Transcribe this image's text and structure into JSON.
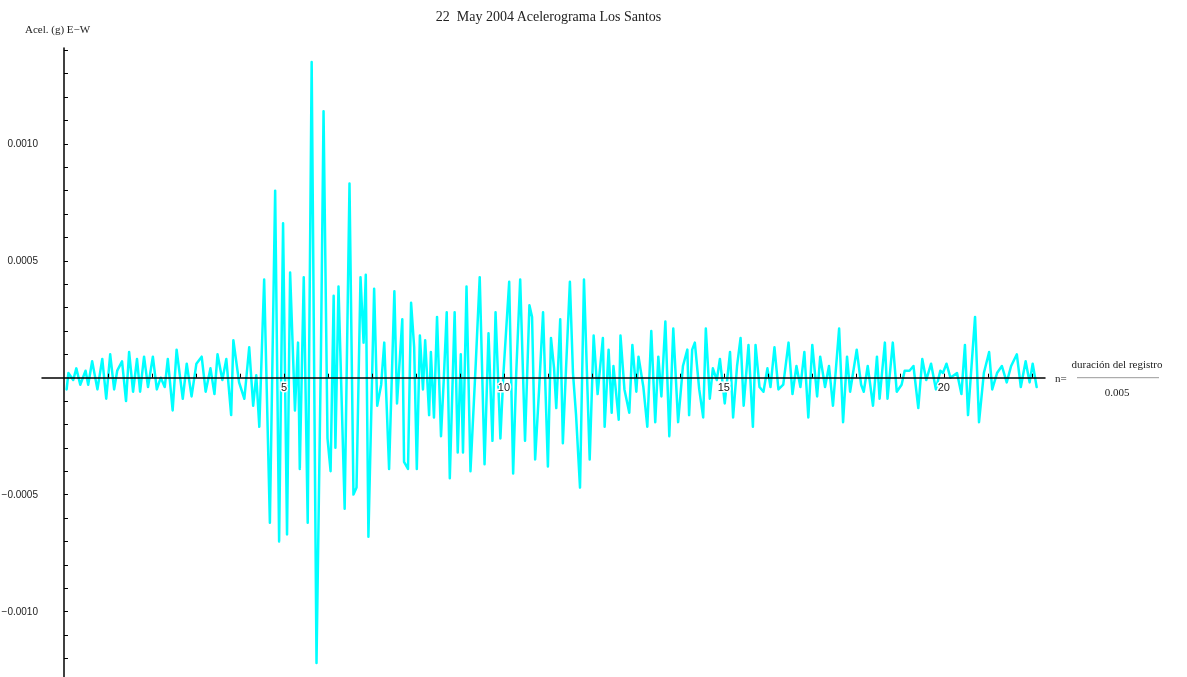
{
  "chart_data": {
    "type": "line",
    "title": "22  May 2004 Acelerograma Los Santos",
    "ylabel": "Acel. (g) E−W",
    "xlabel": "n=",
    "annotations": [
      "duración del registro",
      "0.005"
    ],
    "xlim": [
      -0.5,
      22.3
    ],
    "ylim": [
      -0.00128,
      0.00141
    ],
    "xticks": [
      {
        "value": 1,
        "label": null
      },
      {
        "value": 2,
        "label": null
      },
      {
        "value": 3,
        "label": null
      },
      {
        "value": 4,
        "label": null
      },
      5,
      {
        "value": 6,
        "label": null
      },
      {
        "value": 7,
        "label": null
      },
      {
        "value": 8,
        "label": null
      },
      {
        "value": 9,
        "label": null
      },
      10,
      {
        "value": 11,
        "label": null
      },
      {
        "value": 12,
        "label": null
      },
      {
        "value": 13,
        "label": null
      },
      {
        "value": 14,
        "label": null
      },
      15,
      {
        "value": 16,
        "label": null
      },
      {
        "value": 17,
        "label": null
      },
      {
        "value": 18,
        "label": null
      },
      {
        "value": 19,
        "label": null
      },
      20,
      {
        "value": 21,
        "label": null
      },
      {
        "value": 22,
        "label": null
      }
    ],
    "yticks": [
      {
        "value": -0.0012,
        "label": null
      },
      {
        "value": -0.0011,
        "label": null
      },
      {
        "value": -0.001,
        "label": "−0.0010"
      },
      {
        "value": -0.0009,
        "label": null
      },
      {
        "value": -0.0008,
        "label": null
      },
      {
        "value": -0.0007,
        "label": null
      },
      {
        "value": -0.0006,
        "label": null
      },
      {
        "value": -0.0005,
        "label": "−0.0005"
      },
      {
        "value": -0.0004,
        "label": null
      },
      {
        "value": -0.0003,
        "label": null
      },
      {
        "value": -0.0002,
        "label": null
      },
      {
        "value": -0.0001,
        "label": null
      },
      {
        "value": 0.0001,
        "label": null
      },
      {
        "value": 0.0002,
        "label": null
      },
      {
        "value": 0.0003,
        "label": null
      },
      {
        "value": 0.0004,
        "label": null
      },
      {
        "value": 0.0005,
        "label": "0.0005"
      },
      {
        "value": 0.0006,
        "label": null
      },
      {
        "value": 0.0007,
        "label": null
      },
      {
        "value": 0.0008,
        "label": null
      },
      {
        "value": 0.0009,
        "label": null
      },
      {
        "value": 0.001,
        "label": "0.0010"
      },
      {
        "value": 0.0011,
        "label": null
      },
      {
        "value": 0.0012,
        "label": null
      },
      {
        "value": 0.0013,
        "label": null
      },
      {
        "value": 0.0014,
        "label": null
      }
    ],
    "grid": false,
    "marker": "none",
    "line_style": "solid",
    "series": [
      {
        "color": "#00ffff",
        "x": [
          0.06,
          0.1,
          0.21,
          0.28,
          0.37,
          0.49,
          0.55,
          0.64,
          0.76,
          0.87,
          0.96,
          1.05,
          1.14,
          1.21,
          1.32,
          1.41,
          1.48,
          1.57,
          1.66,
          1.73,
          1.82,
          1.91,
          2.02,
          2.11,
          2.2,
          2.29,
          2.36,
          2.47,
          2.56,
          2.7,
          2.79,
          2.9,
          3.01,
          3.13,
          3.22,
          3.33,
          3.42,
          3.49,
          3.6,
          3.69,
          3.8,
          3.85,
          3.98,
          4.1,
          4.21,
          4.3,
          4.37,
          4.44,
          4.55,
          4.68,
          4.8,
          4.89,
          4.98,
          5.07,
          5.14,
          5.25,
          5.32,
          5.36,
          5.45,
          5.54,
          5.63,
          5.74,
          5.84,
          5.9,
          5.99,
          6.06,
          6.13,
          6.17,
          6.24,
          6.38,
          6.49,
          6.58,
          6.65,
          6.74,
          6.81,
          6.86,
          6.92,
          7.05,
          7.12,
          7.21,
          7.28,
          7.39,
          7.51,
          7.57,
          7.69,
          7.73,
          7.82,
          7.89,
          7.96,
          8.02,
          8.09,
          8.16,
          8.21,
          8.3,
          8.34,
          8.41,
          8.48,
          8.57,
          8.63,
          8.7,
          8.77,
          8.88,
          8.95,
          9.02,
          9.07,
          9.15,
          9.24,
          9.36,
          9.45,
          9.56,
          9.65,
          9.74,
          9.81,
          9.92,
          9.99,
          10.12,
          10.21,
          10.28,
          10.37,
          10.48,
          10.58,
          10.64,
          10.71,
          10.8,
          10.89,
          11.0,
          11.07,
          11.14,
          11.19,
          11.28,
          11.34,
          11.41,
          11.5,
          11.57,
          11.64,
          11.73,
          11.82,
          11.95,
          12.04,
          12.13,
          12.25,
          12.29,
          12.38,
          12.45,
          12.49,
          12.61,
          12.65,
          12.74,
          12.85,
          12.92,
          13.01,
          13.06,
          13.17,
          13.26,
          13.35,
          13.44,
          13.51,
          13.58,
          13.67,
          13.76,
          13.85,
          13.96,
          14.07,
          14.17,
          14.21,
          14.28,
          14.34,
          14.44,
          14.53,
          14.59,
          14.68,
          14.75,
          14.84,
          14.91,
          15.02,
          15.14,
          15.21,
          15.3,
          15.38,
          15.45,
          15.56,
          15.66,
          15.72,
          15.81,
          15.9,
          15.99,
          16.06,
          16.15,
          16.24,
          16.35,
          16.47,
          16.56,
          16.65,
          16.74,
          16.83,
          16.92,
          17.01,
          17.12,
          17.19,
          17.3,
          17.39,
          17.48,
          17.62,
          17.71,
          17.8,
          17.87,
          18.02,
          18.12,
          18.18,
          18.27,
          18.39,
          18.48,
          18.54,
          18.66,
          18.72,
          18.84,
          18.93,
          19.04,
          19.11,
          19.22,
          19.31,
          19.42,
          19.51,
          19.6,
          19.71,
          19.82,
          19.92,
          19.98,
          20.06,
          20.15,
          20.3,
          20.4,
          20.48,
          20.55,
          20.71,
          20.8,
          20.91,
          21.03,
          21.1,
          21.21,
          21.32,
          21.43,
          21.53,
          21.66,
          21.75,
          21.86,
          21.95,
          22.02,
          22.11
        ],
        "values": [
          -5e-05,
          2e-05,
          -1e-05,
          4e-05,
          -3e-05,
          3e-05,
          -3e-05,
          7e-05,
          -5e-05,
          8e-05,
          -9e-05,
          0.0001,
          -5e-05,
          3e-05,
          7e-05,
          -0.0001,
          0.00011,
          -6e-05,
          8e-05,
          -6e-05,
          9e-05,
          -4e-05,
          9e-05,
          -5e-05,
          0,
          -4e-05,
          8e-05,
          -0.00014,
          0.00012,
          -9e-05,
          6e-05,
          -8e-05,
          6e-05,
          9e-05,
          -6e-05,
          4e-05,
          -7e-05,
          0.0001,
          -1e-05,
          8e-05,
          -0.00016,
          0.00016,
          -2e-05,
          -9e-05,
          0.00013,
          -0.00012,
          1e-05,
          -0.00021,
          0.00042,
          -0.00062,
          0.0008,
          -0.0007,
          0.00066,
          -0.00067,
          0.00045,
          -0.00014,
          0.00015,
          -0.00039,
          0.00043,
          -0.00062,
          0.00135,
          -0.00122,
          9e-05,
          0.00114,
          -0.00026,
          -0.0004,
          0.00035,
          -0.0003,
          0.00039,
          -0.00056,
          0.00083,
          -0.0005,
          -0.00047,
          0.00043,
          0.00015,
          0.00044,
          -0.00068,
          0.00038,
          -0.00012,
          -3e-05,
          0.00015,
          -0.00039,
          0.00037,
          -0.00011,
          0.00025,
          -0.00036,
          -0.00039,
          0.00032,
          0.00013,
          -0.00039,
          0.00018,
          -5e-05,
          0.00016,
          -0.00016,
          0.00011,
          -0.00017,
          0.00026,
          -0.00025,
          -2e-05,
          0.00028,
          -0.00043,
          0.00028,
          -0.00032,
          0.0001,
          -0.00032,
          0.00039,
          -0.0004,
          6e-05,
          0.00043,
          -0.00037,
          0.00019,
          -0.00027,
          0.00028,
          -0.00026,
          2e-05,
          0.00041,
          -0.00041,
          2e-05,
          0.00042,
          -0.00027,
          0.00031,
          0.00026,
          -0.00035,
          -5e-05,
          0.00028,
          -0.00038,
          0.00017,
          4e-05,
          -0.00013,
          0.00025,
          -0.00028,
          3e-05,
          0.00041,
          2e-05,
          -0.00016,
          -0.00047,
          0.00042,
          -0.00035,
          0.00018,
          -7e-05,
          0.00017,
          -0.00021,
          0.00012,
          -0.00015,
          5e-05,
          -0.00018,
          0.00018,
          -5e-05,
          -0.00015,
          0.00014,
          -6e-05,
          9e-05,
          -4e-05,
          -0.00021,
          0.0002,
          -0.00019,
          9e-05,
          -8e-05,
          0.00024,
          -0.00025,
          0.00021,
          -0.00019,
          5e-05,
          0.00012,
          -0.00016,
          0.00012,
          0.00015,
          -5e-05,
          -0.00017,
          0.00021,
          -9e-05,
          4e-05,
          -1e-05,
          8e-05,
          -0.00011,
          0.00011,
          -0.00017,
          5e-05,
          0.00017,
          -0.00012,
          0.00014,
          -0.00021,
          0.00014,
          -4e-05,
          -6e-05,
          4e-05,
          -4e-05,
          0.00013,
          -5e-05,
          -3e-05,
          0.00015,
          -7e-05,
          5e-05,
          -4e-05,
          0.00011,
          -0.00017,
          0.00014,
          -8e-05,
          9e-05,
          -4e-05,
          5e-05,
          -0.00012,
          0.00021,
          -0.00019,
          9e-05,
          -6e-05,
          0.00012,
          -3e-05,
          -6e-05,
          5e-05,
          -0.00012,
          9e-05,
          -9e-05,
          0.00015,
          -9e-05,
          0.00015,
          -6e-05,
          -3e-05,
          3e-05,
          3e-05,
          5e-05,
          -0.00013,
          8e-05,
          -1e-05,
          6e-05,
          -5e-05,
          3e-05,
          2e-05,
          6e-05,
          0,
          2e-05,
          -7e-05,
          0.00014,
          -0.00016,
          0.00026,
          -0.00019,
          2e-05,
          0.00011,
          -5e-05,
          2e-05,
          5e-05,
          -2e-05,
          5e-05,
          0.0001,
          -4e-05,
          7e-05,
          -2e-05,
          6e-05,
          -4e-05
        ]
      }
    ]
  }
}
